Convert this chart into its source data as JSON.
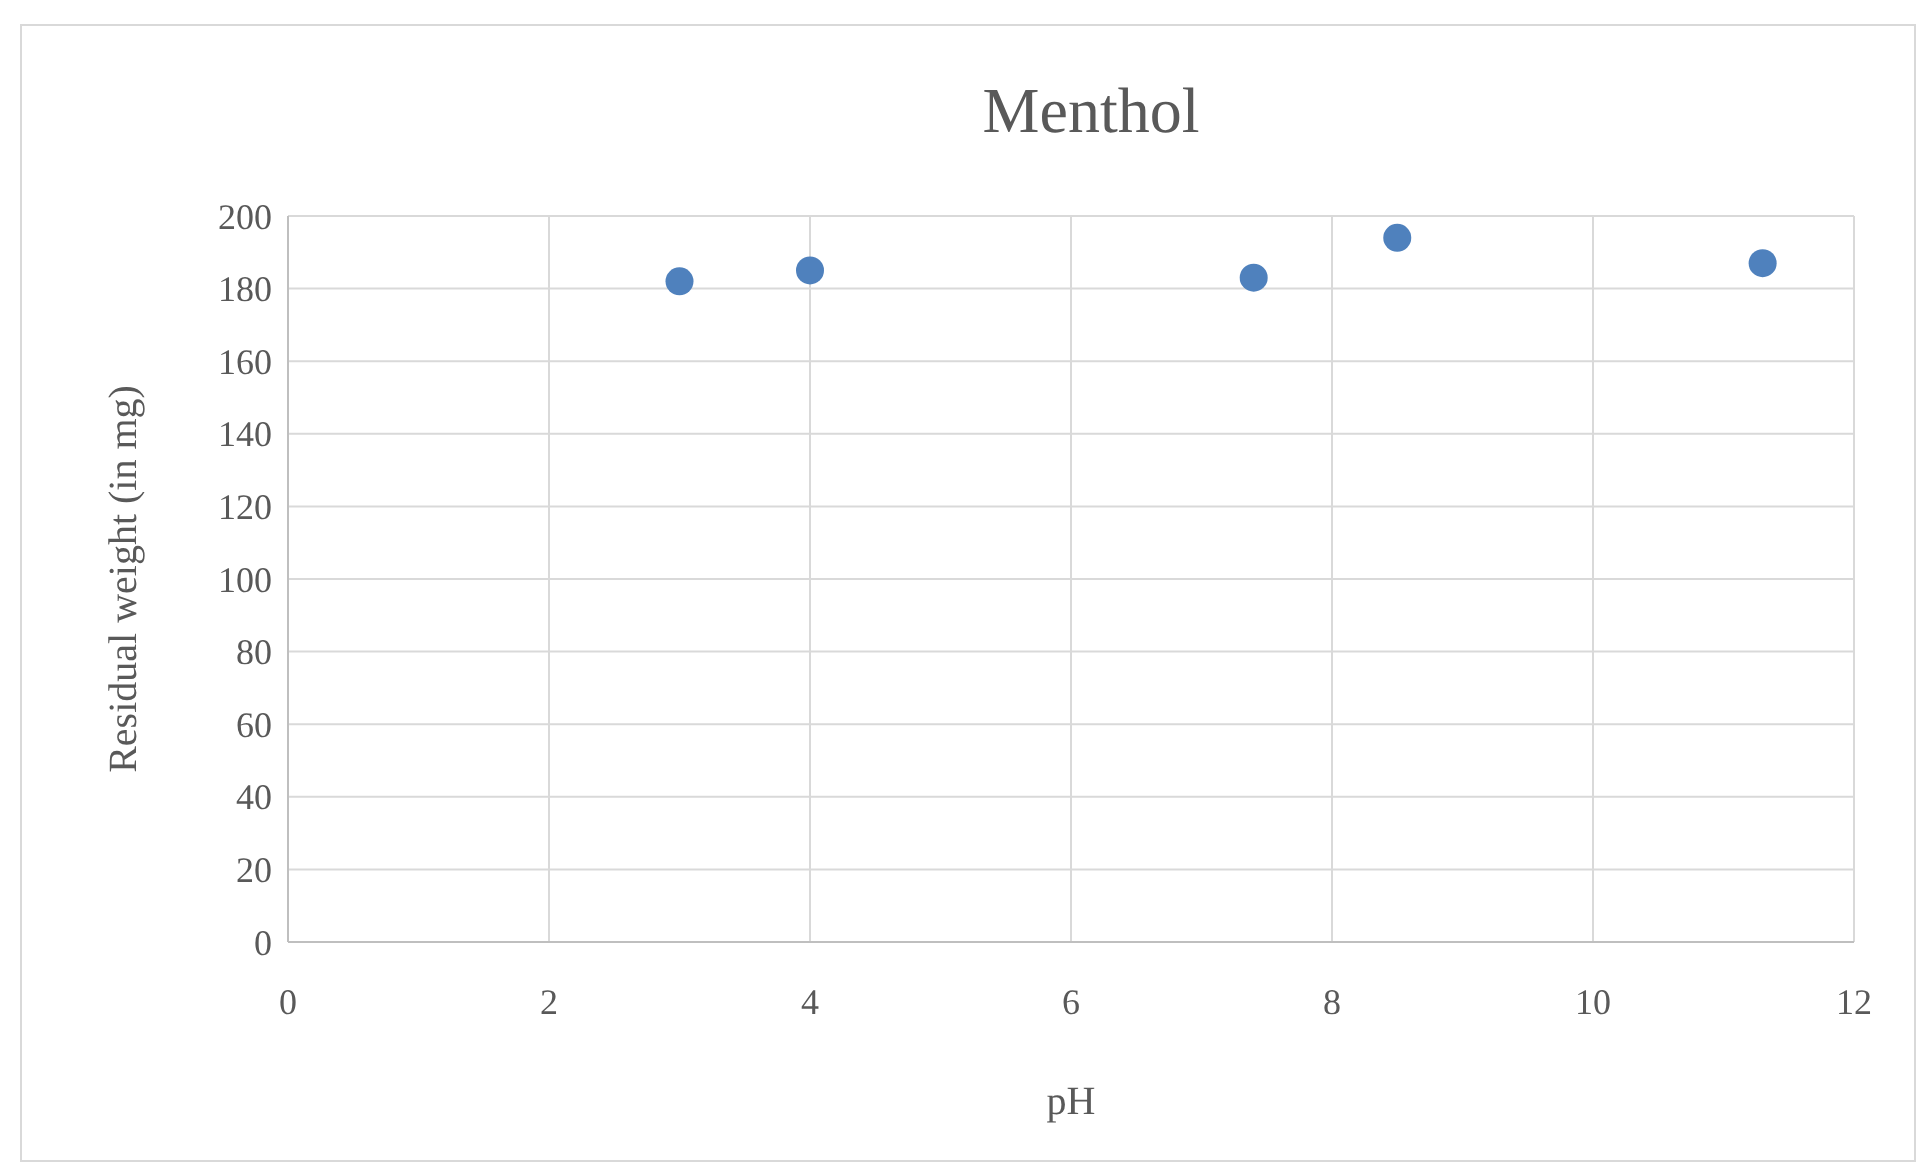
{
  "chart_data": {
    "type": "scatter",
    "title": "Menthol",
    "xlabel": "pH",
    "ylabel": "Residual weight (in mg)",
    "x": [
      3,
      4,
      7.4,
      8.5,
      11.3
    ],
    "series": [
      {
        "color": "#4f81bd",
        "values": [
          182,
          185,
          183,
          194,
          187
        ]
      }
    ],
    "xlim": [
      0,
      12
    ],
    "xticks": [
      0,
      2,
      4,
      6,
      8,
      10,
      12
    ],
    "ylim": [
      0,
      200
    ],
    "yticks": [
      0,
      20,
      40,
      60,
      80,
      100,
      120,
      140,
      160,
      180,
      200
    ],
    "grid": true,
    "marker": "circle"
  }
}
